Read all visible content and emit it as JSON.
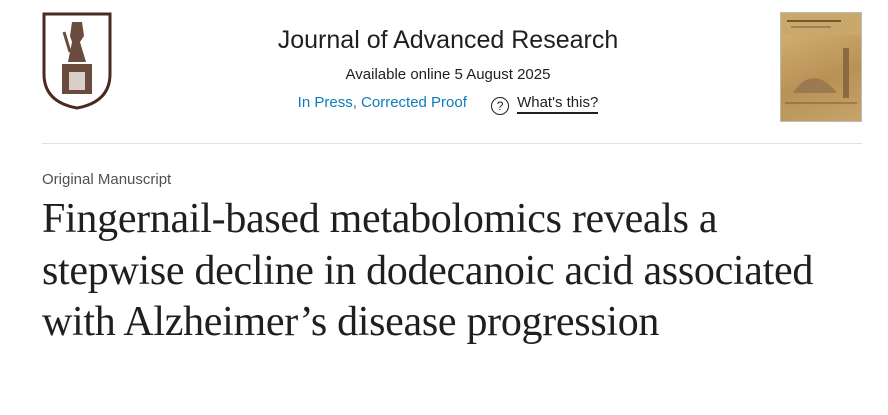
{
  "header": {
    "journal_title": "Journal of Advanced Research",
    "available_online": "Available online 5 August 2025",
    "status_link": "In Press, Corrected Proof",
    "help_link": "What's this?",
    "logo_icon": "seated-pharaoh-shield-logo",
    "cover_icon": "journal-cover-thumbnail"
  },
  "article": {
    "type": "Original Manuscript",
    "title": "Fingernail-based metabolomics reveals a stepwise decline in dodecanoic acid associated with Alzheimer’s disease progression"
  },
  "colors": {
    "link": "#0c7dbb",
    "logo": "#4a2a1e"
  }
}
